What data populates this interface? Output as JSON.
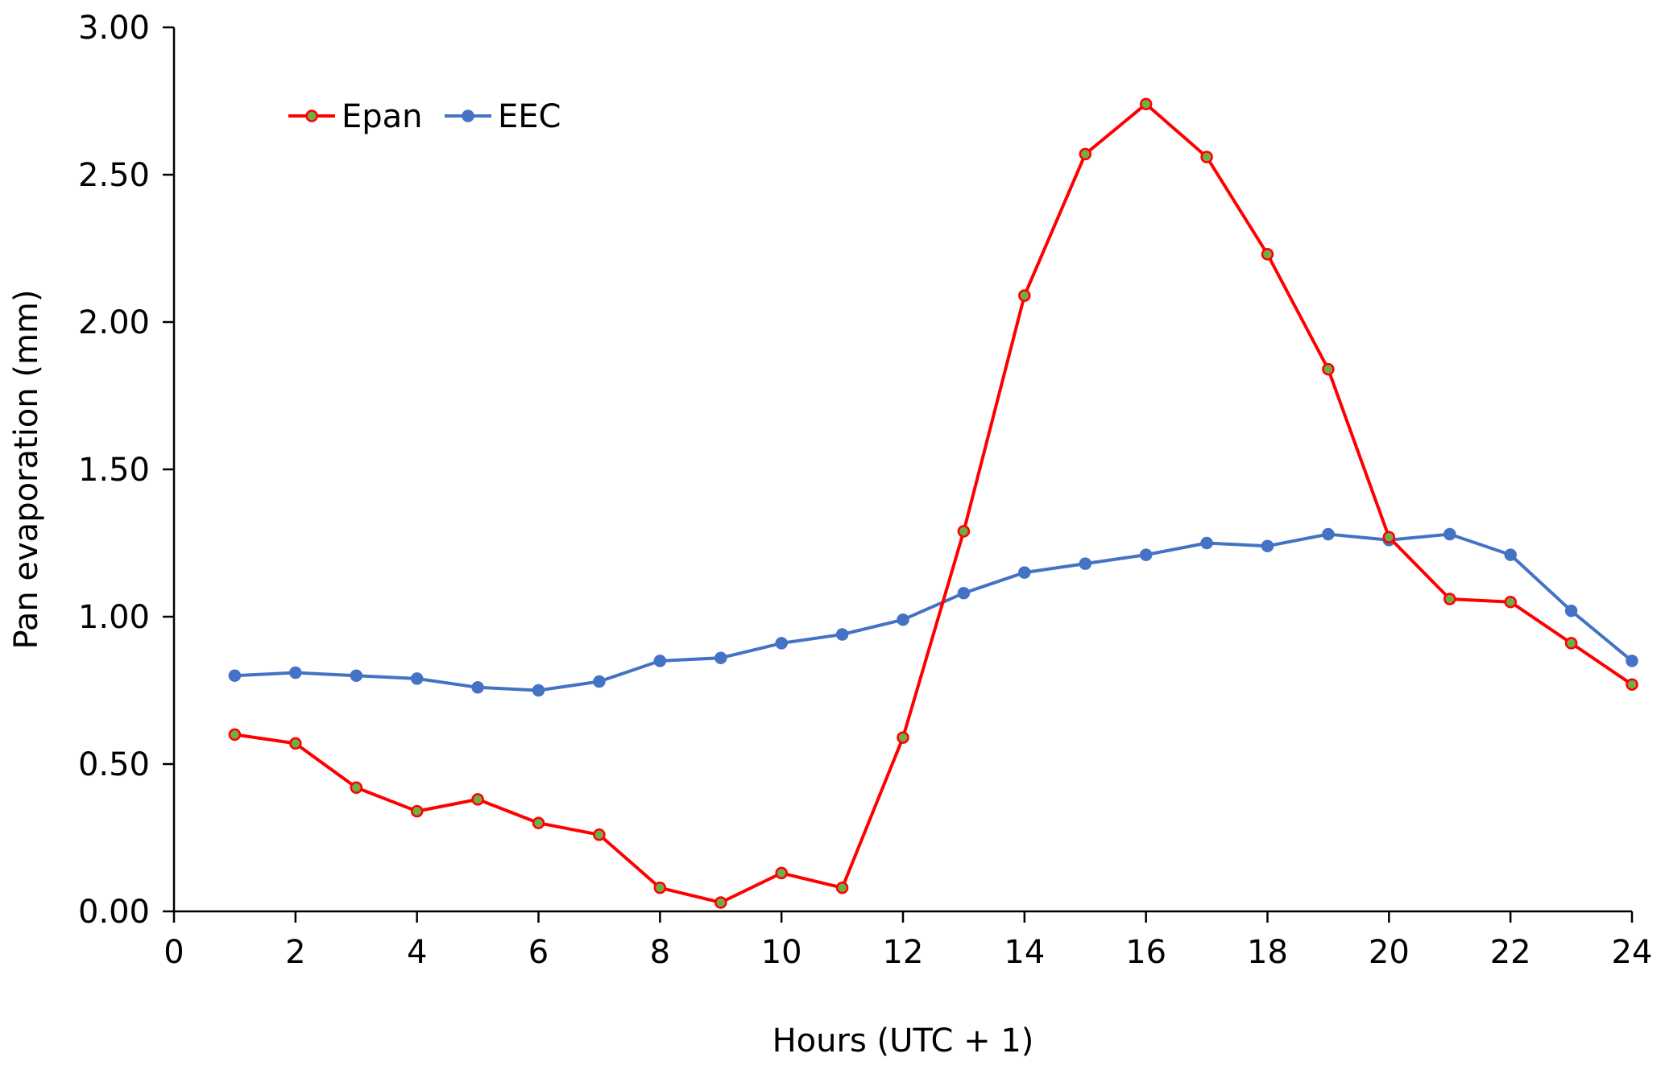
{
  "chart_data": {
    "type": "line",
    "title": "",
    "xlabel": "Hours (UTC + 1)",
    "ylabel": "Pan evaporation  (mm)",
    "xlim": [
      0,
      24
    ],
    "ylim": [
      0,
      3
    ],
    "x_ticks": [
      0,
      2,
      4,
      6,
      8,
      10,
      12,
      14,
      16,
      18,
      20,
      22,
      24
    ],
    "x_tick_labels": [
      "0",
      "2",
      "4",
      "6",
      "8",
      "10",
      "12",
      "14",
      "16",
      "18",
      "20",
      "22",
      "24"
    ],
    "y_ticks": [
      0,
      0.5,
      1,
      1.5,
      2,
      2.5,
      3
    ],
    "y_tick_labels": [
      "0.00",
      "0.50",
      "1.00",
      "1.50",
      "2.00",
      "2.50",
      "3.00"
    ],
    "grid": false,
    "legend_position": "top-left",
    "x": [
      1,
      2,
      3,
      4,
      5,
      6,
      7,
      8,
      9,
      10,
      11,
      12,
      13,
      14,
      15,
      16,
      17,
      18,
      19,
      20,
      21,
      22,
      23,
      24
    ],
    "series": [
      {
        "name": "Epan",
        "color": "#FF0000",
        "marker_color": "#70AD47",
        "values": [
          0.6,
          0.57,
          0.42,
          0.34,
          0.38,
          0.3,
          0.26,
          0.08,
          0.03,
          0.13,
          0.08,
          0.59,
          1.29,
          2.09,
          2.57,
          2.74,
          2.56,
          2.23,
          1.84,
          1.27,
          1.06,
          1.05,
          0.91,
          0.77
        ]
      },
      {
        "name": "EEC",
        "color": "#4472C4",
        "marker_color": "#4472C4",
        "values": [
          0.8,
          0.81,
          0.8,
          0.79,
          0.76,
          0.75,
          0.78,
          0.85,
          0.86,
          0.91,
          0.94,
          0.99,
          1.08,
          1.15,
          1.18,
          1.21,
          1.25,
          1.24,
          1.28,
          1.26,
          1.28,
          1.21,
          1.02,
          0.85
        ]
      }
    ]
  }
}
